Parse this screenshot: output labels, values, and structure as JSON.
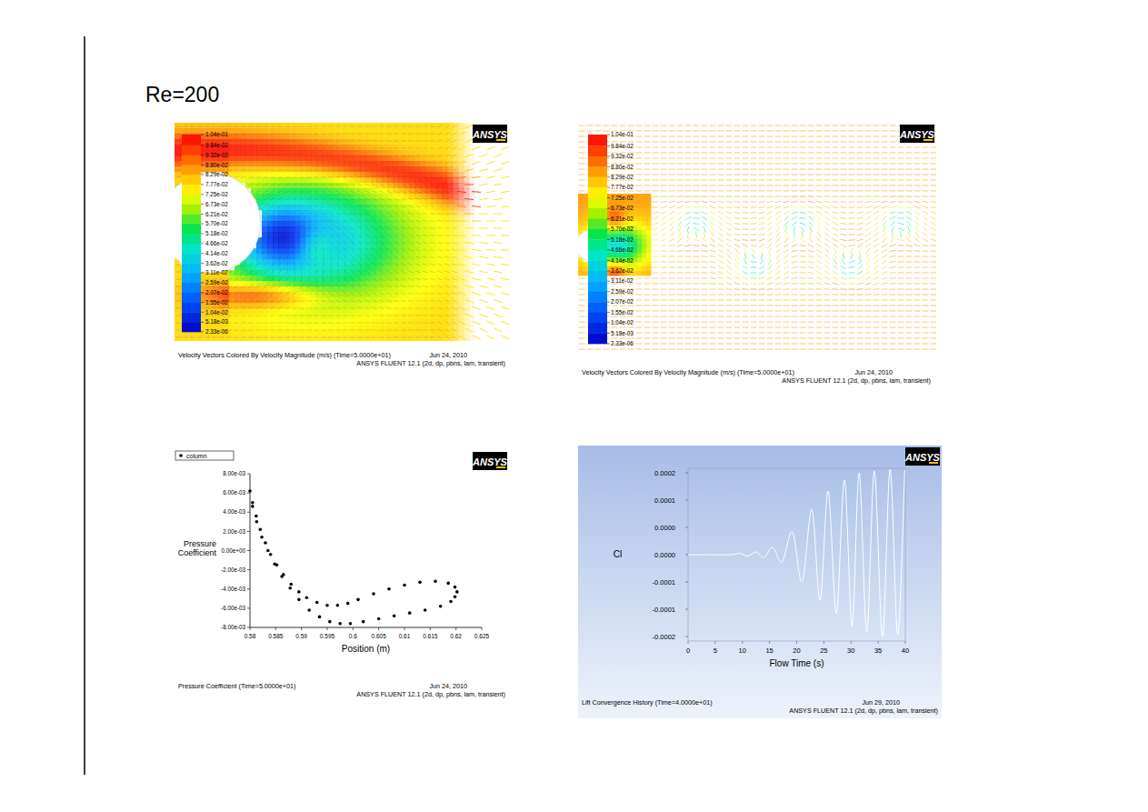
{
  "title": "Re=200",
  "chart_data": [
    {
      "type": "vector_field",
      "title": "Velocity Vectors Colored By Velocity Magnitude (m/s)  (Time=5.0000e+01)",
      "subtitle": "ANSYS FLUENT 12.1 (2d, dp, pbns, lam, transient)",
      "annotations": [
        "ANSYS",
        "Jun 24, 2010"
      ],
      "colorbar_range": [
        2.33e-06,
        0.104
      ],
      "colorbar_ticks": [
        {
          "value": 0.104,
          "label": "1.04e-01"
        },
        {
          "value": 0.0984,
          "label": "9.84e-02"
        },
        {
          "value": 0.0932,
          "label": "9.32e-02"
        },
        {
          "value": 0.088,
          "label": "8.80e-02"
        },
        {
          "value": 0.0829,
          "label": "8.29e-02"
        },
        {
          "value": 0.0777,
          "label": "7.77e-02"
        },
        {
          "value": 0.0725,
          "label": "7.25e-02"
        },
        {
          "value": 0.0673,
          "label": "6.73e-02"
        },
        {
          "value": 0.0621,
          "label": "6.21e-02"
        },
        {
          "value": 0.057,
          "label": "5.70e-02"
        },
        {
          "value": 0.0518,
          "label": "5.18e-02"
        },
        {
          "value": 0.0466,
          "label": "4.66e-02"
        },
        {
          "value": 0.0414,
          "label": "4.14e-02"
        },
        {
          "value": 0.0362,
          "label": "3.62e-02"
        },
        {
          "value": 0.0311,
          "label": "3.11e-02"
        },
        {
          "value": 0.0259,
          "label": "2.59e-02"
        },
        {
          "value": 0.0207,
          "label": "2.07e-02"
        },
        {
          "value": 0.0155,
          "label": "1.55e-02"
        },
        {
          "value": 0.0104,
          "label": "1.04e-02"
        },
        {
          "value": 0.00518,
          "label": "5.18e-03"
        },
        {
          "value": 2.33e-06,
          "label": "2.33e-06"
        }
      ]
    },
    {
      "type": "vector_field",
      "title": "Velocity Vectors Colored By Velocity Magnitude (m/s)  (Time=5.0000e+01)",
      "subtitle": "ANSYS FLUENT 12.1 (2d, dp, pbns, lam, transient)",
      "annotations": [
        "ANSYS",
        "Jun 24, 2010"
      ],
      "colorbar_range": [
        2.33e-06,
        0.104
      ],
      "colorbar_ticks": [
        {
          "value": 0.104,
          "label": "1.04e-01"
        },
        {
          "value": 0.0984,
          "label": "9.84e-02"
        },
        {
          "value": 0.0932,
          "label": "9.32e-02"
        },
        {
          "value": 0.088,
          "label": "8.80e-02"
        },
        {
          "value": 0.0829,
          "label": "8.29e-02"
        },
        {
          "value": 0.0777,
          "label": "7.77e-02"
        },
        {
          "value": 0.0725,
          "label": "7.25e-02"
        },
        {
          "value": 0.0673,
          "label": "6.73e-02"
        },
        {
          "value": 0.0621,
          "label": "6.21e-02"
        },
        {
          "value": 0.057,
          "label": "5.70e-02"
        },
        {
          "value": 0.0518,
          "label": "5.18e-02"
        },
        {
          "value": 0.0466,
          "label": "4.66e-02"
        },
        {
          "value": 0.0414,
          "label": "4.14e-02"
        },
        {
          "value": 0.0362,
          "label": "3.62e-02"
        },
        {
          "value": 0.0311,
          "label": "3.11e-02"
        },
        {
          "value": 0.0259,
          "label": "2.59e-02"
        },
        {
          "value": 0.0207,
          "label": "2.07e-02"
        },
        {
          "value": 0.0155,
          "label": "1.55e-02"
        },
        {
          "value": 0.0104,
          "label": "1.04e-02"
        },
        {
          "value": 0.00518,
          "label": "5.18e-03"
        },
        {
          "value": 2.33e-06,
          "label": "2.33e-06"
        }
      ]
    },
    {
      "type": "scatter",
      "title": "Pressure Coefficient  (Time=5.0000e+01)",
      "subtitle": "ANSYS FLUENT 12.1 (2d, dp, pbns, lam, transient)",
      "annotations": [
        "ANSYS",
        "Jun 24, 2010"
      ],
      "xlabel": "Position (m)",
      "ylabel": "Pressure Coefficient",
      "legend": "top-left",
      "grid": false,
      "x": [
        0.58,
        0.5805,
        0.5812,
        0.582,
        0.583,
        0.584,
        0.5852,
        0.5865,
        0.588,
        0.5895,
        0.591,
        0.593,
        0.595,
        0.597,
        0.599,
        0.601,
        0.604,
        0.607,
        0.61,
        0.613,
        0.616,
        0.6185,
        0.6198,
        0.6202,
        0.5805,
        0.5813,
        0.5823,
        0.5835,
        0.5848,
        0.5862,
        0.5878,
        0.5895,
        0.5915,
        0.5935,
        0.5955,
        0.5975,
        0.5995,
        0.602,
        0.605,
        0.608,
        0.611,
        0.614,
        0.617,
        0.619,
        0.6198
      ],
      "series": [
        {
          "name": "column",
          "color": "#000000",
          "marker": "circle",
          "values": [
            0.0062,
            0.005,
            0.0036,
            0.0022,
            0.0008,
            -0.0004,
            -0.0015,
            -0.0025,
            -0.0035,
            -0.0043,
            -0.0049,
            -0.0054,
            -0.0057,
            -0.0057,
            -0.0055,
            -0.0051,
            -0.0045,
            -0.004,
            -0.0036,
            -0.0033,
            -0.0032,
            -0.0034,
            -0.0038,
            -0.0043,
            0.0046,
            0.003,
            0.0014,
            0,
            -0.0014,
            -0.0027,
            -0.0039,
            -0.0051,
            -0.0062,
            -0.0069,
            -0.0074,
            -0.0076,
            -0.0076,
            -0.0074,
            -0.0071,
            -0.0068,
            -0.0065,
            -0.0062,
            -0.0058,
            -0.0053,
            -0.0048
          ]
        }
      ],
      "xlim": [
        0.58,
        0.625
      ],
      "ylim": [
        -0.008,
        0.008
      ],
      "xticks": [
        0.58,
        0.585,
        0.59,
        0.595,
        0.6,
        0.605,
        0.61,
        0.615,
        0.62,
        0.625
      ],
      "yticks": [
        {
          "value": 0.008,
          "label": "8.00e-03"
        },
        {
          "value": 0.006,
          "label": "6.00e-03"
        },
        {
          "value": 0.004,
          "label": "4.00e-03"
        },
        {
          "value": 0.002,
          "label": "2.00e-03"
        },
        {
          "value": 0,
          "label": "0.00e+00"
        },
        {
          "value": -0.002,
          "label": "-2.00e-03"
        },
        {
          "value": -0.004,
          "label": "-4.00e-03"
        },
        {
          "value": -0.006,
          "label": "-6.00e-03"
        },
        {
          "value": -0.008,
          "label": "-8.00e-03"
        }
      ]
    },
    {
      "type": "line",
      "title": "Lift Convergence History  (Time=4.0000e+01)",
      "subtitle": "ANSYS FLUENT 12.1 (2d, dp, pbns, lam, transient)",
      "annotations": [
        "ANSYS",
        "Jun 29, 2010"
      ],
      "xlabel": "Flow Time (s)",
      "ylabel": "Cl",
      "color": "#ffffff",
      "grid": false,
      "x": [
        0,
        5,
        8,
        9.5,
        11,
        12.5,
        14,
        15.6,
        17.3,
        19.2,
        21,
        22.8,
        24.3,
        25.8,
        27.3,
        28.8,
        30.2,
        31.5,
        32.9,
        34.3,
        35.8,
        37.2,
        38.6,
        39.9
      ],
      "values": [
        -2e-05,
        -2e-05,
        -2e-05,
        -1.7e-05,
        -2.3e-05,
        -1.4e-05,
        -2.6e-05,
        -4e-06,
        -3.6e-05,
        3e-05,
        -8e-05,
        8e-05,
        -0.00012,
        0.00012,
        -0.00015,
        0.000144,
        -0.000178,
        0.00016,
        -0.00019,
        0.000164,
        -0.0002,
        0.000168,
        -0.000196,
        0.000166
      ],
      "xlim": [
        0,
        40
      ],
      "ylim": [
        -0.00021,
        0.00017
      ],
      "xticks": [
        0,
        5,
        10,
        15,
        20,
        25,
        30,
        35,
        40
      ],
      "yticks": [
        {
          "value": 0.00016,
          "label": "0.0002"
        },
        {
          "value": 0.0001,
          "label": "0.0001"
        },
        {
          "value": 4e-05,
          "label": "0.0000"
        },
        {
          "value": -2e-05,
          "label": "0.0000"
        },
        {
          "value": -8e-05,
          "label": "-0.0001"
        },
        {
          "value": -0.00014,
          "label": "-0.0001"
        },
        {
          "value": -0.0002,
          "label": "-0.0002"
        }
      ]
    }
  ]
}
